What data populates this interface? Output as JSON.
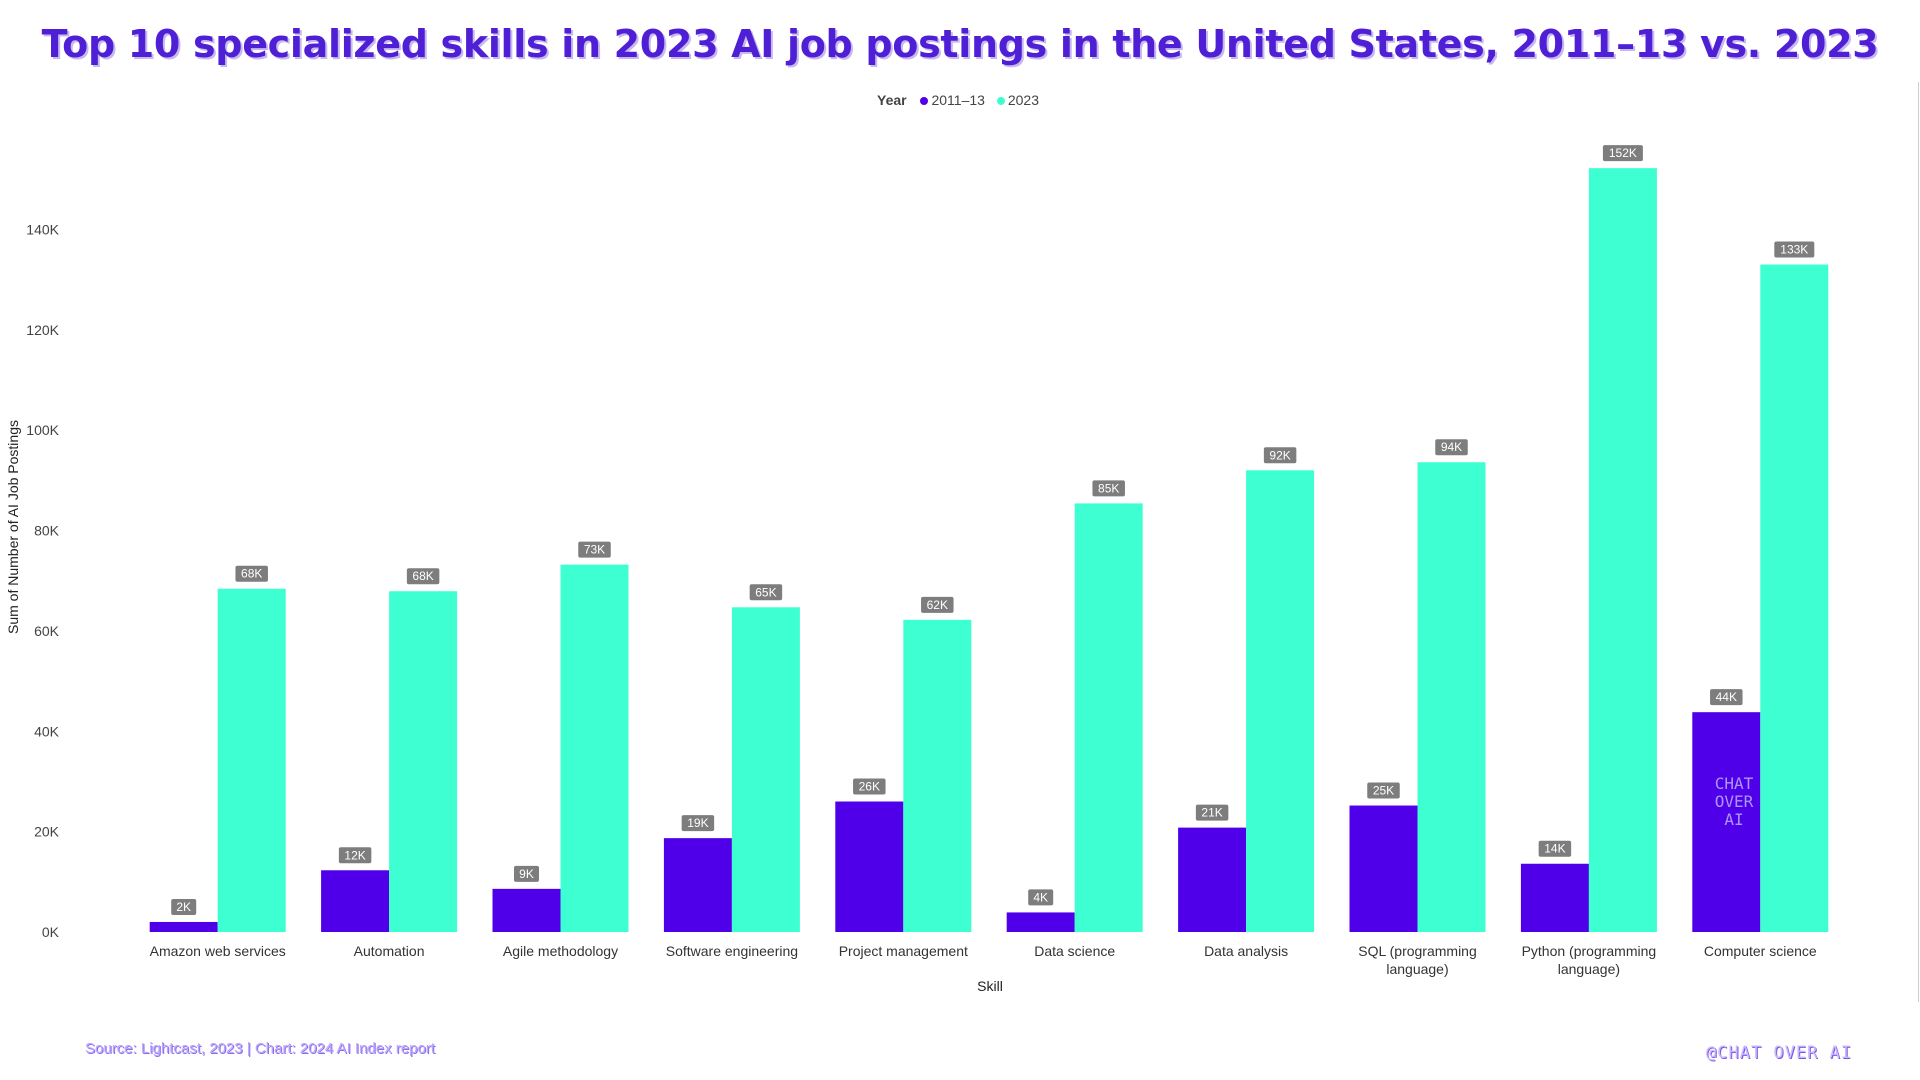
{
  "title": "Top 10 specialized skills in 2023 AI job postings in the United States, 2011–13 vs. 2023",
  "legend": {
    "title": "Year",
    "items": [
      {
        "label": "2011–13",
        "color": "#4f00e8"
      },
      {
        "label": "2023",
        "color": "#3dffd2"
      }
    ]
  },
  "chart_data": {
    "type": "bar",
    "xlabel": "Skill",
    "ylabel": "Sum of Number of AI Job Postings",
    "ylim": [
      0,
      160000
    ],
    "yticks": [
      0,
      20000,
      40000,
      60000,
      80000,
      100000,
      120000,
      140000
    ],
    "ytick_labels": [
      "0K",
      "20K",
      "40K",
      "60K",
      "80K",
      "100K",
      "120K",
      "140K"
    ],
    "categories": [
      [
        "Amazon web services"
      ],
      [
        "Automation"
      ],
      [
        "Agile methodology"
      ],
      [
        "Software engineering"
      ],
      [
        "Project management"
      ],
      [
        "Data science"
      ],
      [
        "Data analysis"
      ],
      [
        "SQL (programming",
        "language)"
      ],
      [
        "Python (programming",
        "language)"
      ],
      [
        "Computer science"
      ]
    ],
    "series": [
      {
        "name": "2011–13",
        "color": "#4f00e8",
        "values": [
          2000,
          12300,
          8600,
          18700,
          26000,
          3900,
          20800,
          25200,
          13600,
          43800
        ],
        "labels": [
          "2K",
          "12K",
          "9K",
          "19K",
          "26K",
          "4K",
          "21K",
          "25K",
          "14K",
          "44K"
        ]
      },
      {
        "name": "2023",
        "color": "#3dffd2",
        "values": [
          68400,
          67900,
          73200,
          64700,
          62200,
          85400,
          92000,
          93600,
          152200,
          133000
        ],
        "labels": [
          "68K",
          "68K",
          "73K",
          "65K",
          "62K",
          "85K",
          "92K",
          "94K",
          "152K",
          "133K"
        ]
      }
    ]
  },
  "source": "Source: Lightcast, 2023 | Chart: 2024 AI Index report",
  "brand": "@CHAT OVER AI",
  "watermark": [
    "CHAT",
    "OVER",
    "AI"
  ]
}
